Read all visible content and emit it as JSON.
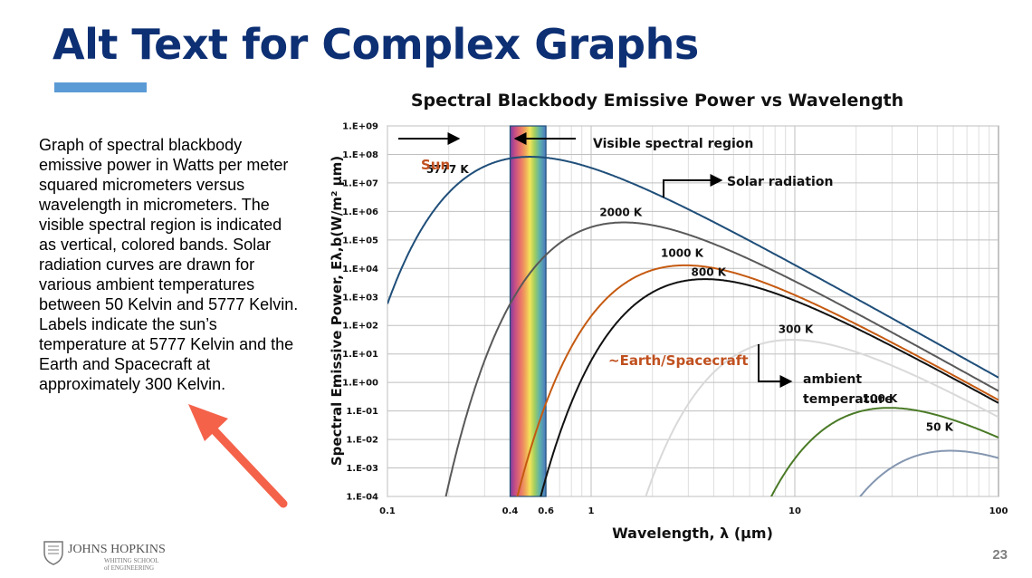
{
  "slide": {
    "title": "Alt Text for Complex Graphs",
    "alt_text": "Graph of spectral blackbody emissive power in Watts per meter squared micrometers versus wavelength in micrometers. The visible spectral region is indicated as vertical, colored bands. Solar radiation curves are drawn for various ambient temperatures between 50 Kelvin and 5777 Kelvin. Labels indicate the sun’s temperature at 5777 Kelvin and the Earth and Spacecraft at approximately 300 Kelvin.",
    "page_number": "23",
    "logo": {
      "name": "JOHNS HOPKINS",
      "sub1": "WHITING SCHOOL",
      "sub2": "of ENGINEERING"
    }
  },
  "chart_data": {
    "type": "line",
    "title": "Spectral Blackbody Emissive Power vs Wavelength",
    "xlabel": "Wavelength, λ (μm)",
    "ylabel": "Spectral Emissive Power, Eλ,b(W/m² μm)",
    "x_scale": "log",
    "y_scale": "log",
    "xlim": [
      0.1,
      100
    ],
    "ylim": [
      0.0001,
      1000000000
    ],
    "x_ticks": [
      "0.1",
      "1",
      "10",
      "100"
    ],
    "x_extra_ticks": [
      "0.4",
      "0.6"
    ],
    "y_ticks": [
      "1.E-04",
      "1.E-03",
      "1.E-02",
      "1.E-01",
      "1.E+00",
      "1.E+01",
      "1.E+02",
      "1.E+03",
      "1.E+04",
      "1.E+05",
      "1.E+06",
      "1.E+07",
      "1.E+08",
      "1.E+09"
    ],
    "grid": true,
    "visible_band": [
      0.4,
      0.6
    ],
    "series": [
      {
        "name": "5777 K",
        "temperature_K": 5777,
        "color": "#1f4e79",
        "label_x": 0.155,
        "label_y": 22000000
      },
      {
        "name": "2000 K",
        "temperature_K": 2000,
        "color": "#595959",
        "label_x": 1.1,
        "label_y": 700000
      },
      {
        "name": "1000 K",
        "temperature_K": 1000,
        "color": "#c55a11",
        "label_x": 2.2,
        "label_y": 26000
      },
      {
        "name": "800 K",
        "temperature_K": 800,
        "color": "#111111",
        "label_x": 3.1,
        "label_y": 5500
      },
      {
        "name": "300 K",
        "temperature_K": 300,
        "color": "#d9d9d9",
        "label_x": 8.3,
        "label_y": 55
      },
      {
        "name": "100 K",
        "temperature_K": 100,
        "color": "#4a7a26",
        "label_x": 21.5,
        "label_y": 0.2
      },
      {
        "name": "50 K",
        "temperature_K": 50,
        "color": "#8496b0",
        "label_x": 44,
        "label_y": 0.02
      }
    ],
    "annotations": {
      "visible": "Visible spectral region",
      "solar": "Solar radiation",
      "sun": "Sun",
      "earth": "~Earth/Spacecraft",
      "ambient_1": "ambient",
      "ambient_2": "temperature"
    },
    "colors": {
      "title": "#0d2f73",
      "accent": "#5b9bd5",
      "highlight": "#c0501f",
      "arrow": "#f4624a"
    }
  }
}
